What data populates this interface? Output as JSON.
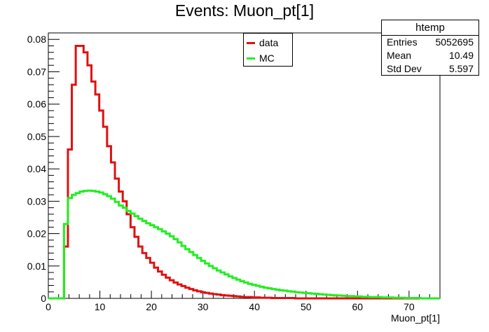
{
  "chart_data": {
    "type": "line",
    "title": "Events: Muon_pt[1]",
    "xlabel": "Muon_pt[1]",
    "ylabel": "",
    "xlim": [
      0,
      76
    ],
    "ylim": [
      0,
      0.082
    ],
    "xticks": [
      0,
      10,
      20,
      30,
      40,
      50,
      60,
      70
    ],
    "yticks": [
      0,
      0.01,
      0.02,
      0.03,
      0.04,
      0.05,
      0.06,
      0.07,
      0.08
    ],
    "xtick_labels": [
      "0",
      "10",
      "20",
      "30",
      "40",
      "50",
      "60",
      "70"
    ],
    "ytick_labels": [
      "0",
      "0.01",
      "0.02",
      "0.03",
      "0.04",
      "0.05",
      "0.06",
      "0.07",
      "0.08"
    ],
    "bin_width": 0.76,
    "bin_start": 0,
    "grid": false,
    "legend_position": "top-center",
    "series": [
      {
        "name": "data",
        "color": "#e01010",
        "values": [
          0,
          0,
          0,
          0,
          0.016,
          0.046,
          0.066,
          0.078,
          0.078,
          0.076,
          0.072,
          0.067,
          0.063,
          0.058,
          0.053,
          0.047,
          0.042,
          0.037,
          0.033,
          0.03,
          0.026,
          0.022,
          0.019,
          0.016,
          0.014,
          0.0125,
          0.011,
          0.0095,
          0.0083,
          0.0073,
          0.0064,
          0.0056,
          0.0049,
          0.0043,
          0.0038,
          0.0033,
          0.0029,
          0.0025,
          0.0022,
          0.0019,
          0.0017,
          0.0015,
          0.0013,
          0.0012,
          0.001,
          0.0009,
          0.0008,
          0.0007,
          0.0006,
          0.0005,
          0.0004,
          0.0004,
          0.0003,
          0.0003,
          0.0002,
          0.0002,
          0.0002,
          0.0001,
          0.0001,
          0.0001,
          0.0001,
          0.0001,
          0.0001,
          0,
          0,
          0,
          0,
          0,
          0,
          0,
          0,
          0,
          0,
          0,
          0,
          0,
          0,
          0,
          0,
          0,
          0,
          0,
          0,
          0,
          0,
          0,
          0,
          0,
          0,
          0,
          0,
          0,
          0,
          0,
          0,
          0,
          0,
          0,
          0,
          0
        ]
      },
      {
        "name": "MC",
        "color": "#22ee22",
        "values": [
          0,
          0,
          0,
          0,
          0.023,
          0.031,
          0.032,
          0.0325,
          0.033,
          0.0332,
          0.0333,
          0.0332,
          0.033,
          0.0327,
          0.0322,
          0.0316,
          0.0308,
          0.0298,
          0.0287,
          0.028,
          0.027,
          0.0262,
          0.0254,
          0.0246,
          0.0239,
          0.0232,
          0.0226,
          0.022,
          0.0214,
          0.0207,
          0.02,
          0.0192,
          0.0183,
          0.0173,
          0.0162,
          0.0152,
          0.0143,
          0.0134,
          0.0125,
          0.0116,
          0.0108,
          0.01,
          0.0093,
          0.0086,
          0.008,
          0.0074,
          0.0068,
          0.0063,
          0.0058,
          0.0053,
          0.0049,
          0.0045,
          0.0042,
          0.0039,
          0.0036,
          0.0033,
          0.0031,
          0.0029,
          0.0027,
          0.0025,
          0.0024,
          0.0022,
          0.0021,
          0.0019,
          0.0018,
          0.0017,
          0.0016,
          0.0015,
          0.0014,
          0.0013,
          0.0012,
          0.0011,
          0.001,
          0.0009,
          0.0009,
          0.0008,
          0.0007,
          0.0007,
          0.0006,
          0.0006,
          0.0005,
          0.0005,
          0.0004,
          0.0004,
          0.0004,
          0.0003,
          0.0003,
          0.0003,
          0.0002,
          0.0002,
          0.0002,
          0.0001,
          0.0001,
          0.0001,
          0.0001,
          0,
          0,
          0,
          0,
          0
        ]
      }
    ],
    "stats": {
      "name": "htemp",
      "entries_label": "Entries",
      "entries": "5052695",
      "mean_label": "Mean",
      "mean": "10.49",
      "std_label": "Std Dev",
      "std": "5.597"
    }
  }
}
